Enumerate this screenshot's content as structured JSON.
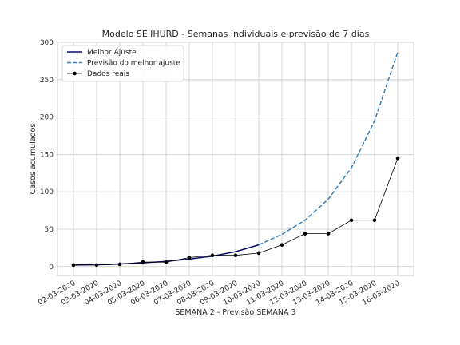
{
  "chart_data": {
    "type": "line",
    "title": "Modelo SEIIHURD - Semanas individuais e previsão de 7 dias",
    "xlabel": "SEMANA 2 - Previsão SEMANA 3",
    "ylabel": "Casos acumulados",
    "categories": [
      "02-03-2020",
      "03-03-2020",
      "04-03-2020",
      "05-03-2020",
      "06-03-2020",
      "07-03-2020",
      "08-03-2020",
      "09-03-2020",
      "10-03-2020",
      "11-03-2020",
      "12-03-2020",
      "13-03-2020",
      "14-03-2020",
      "15-03-2020",
      "16-03-2020"
    ],
    "ylim": [
      -12,
      300
    ],
    "yticks": [
      0,
      50,
      100,
      150,
      200,
      250,
      300
    ],
    "grid": true,
    "legend_position": "top-left",
    "series": [
      {
        "name": "Melhor Ajuste",
        "color": "#0a0a6e",
        "style": "solid",
        "values": [
          2,
          2.5,
          3.5,
          5,
          7,
          10,
          14,
          20,
          29,
          null,
          null,
          null,
          null,
          null,
          null
        ]
      },
      {
        "name": "Previsão do melhor ajuste",
        "color": "#3a7fb8",
        "style": "dashed",
        "values": [
          null,
          null,
          null,
          null,
          null,
          null,
          null,
          null,
          29,
          43,
          62,
          90,
          132,
          195,
          287
        ]
      },
      {
        "name": "Dados reais",
        "color": "#000000",
        "style": "solid-marker",
        "values": [
          2,
          2,
          3,
          6,
          6,
          12,
          15,
          15,
          18,
          29,
          44,
          44,
          62,
          62,
          145
        ]
      }
    ]
  }
}
